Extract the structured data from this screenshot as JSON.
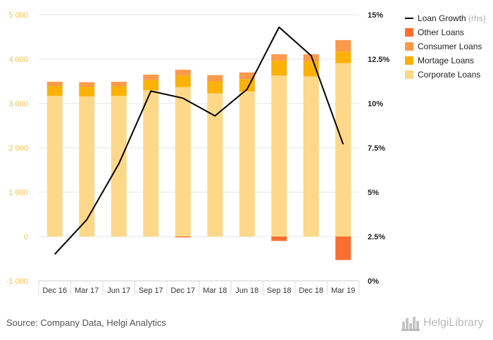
{
  "chart_data": {
    "type": "bar",
    "stacked": true,
    "categories": [
      "Dec 16",
      "Mar 17",
      "Jun 17",
      "Sep 17",
      "Dec 17",
      "Mar 18",
      "Jun 18",
      "Sep 18",
      "Dec 18",
      "Mar 19"
    ],
    "series": [
      {
        "name": "Corporate Loans",
        "color": "#fdd888",
        "values": [
          3170,
          3160,
          3170,
          3300,
          3370,
          3230,
          3270,
          3630,
          3610,
          3910
        ]
      },
      {
        "name": "Mortage Loans",
        "color": "#fbb106",
        "values": [
          220,
          220,
          220,
          230,
          260,
          270,
          280,
          340,
          340,
          260
        ]
      },
      {
        "name": "Consumer Loans",
        "color": "#fb9a4a",
        "values": [
          100,
          100,
          100,
          120,
          130,
          140,
          150,
          140,
          160,
          260
        ]
      },
      {
        "name": "Other Loans",
        "color": "#fb6d2e",
        "values": [
          0,
          0,
          0,
          0,
          -20,
          0,
          0,
          -100,
          0,
          -530
        ]
      }
    ],
    "line": {
      "name": "Loan Growth",
      "axis_note": "(rhs)",
      "color": "#000000",
      "values": [
        1.5,
        3.45,
        6.6,
        10.7,
        10.3,
        9.3,
        10.8,
        14.3,
        12.7,
        7.7
      ]
    },
    "y_left": {
      "min": -1000,
      "max": 5000,
      "ticks": [
        "-1 000",
        "0",
        "1 000",
        "2 000",
        "3 000",
        "4 000",
        "5 000"
      ]
    },
    "y_right": {
      "min": 0,
      "max": 15,
      "ticks": [
        "0%",
        "2.5%",
        "5%",
        "7.5%",
        "10%",
        "12.5%",
        "15%"
      ]
    },
    "legend_position": "top-right",
    "grid": true,
    "xlabel": "",
    "ylabel": ""
  },
  "footer": {
    "source": "Source: Company Data, Helgi Analytics",
    "brand": "HelgiLibrary"
  },
  "colors": {
    "axis_left_label": "#f0c14b",
    "axis_right_label": "#222222",
    "grid": "#e6e6e6"
  },
  "icons": {
    "brand_icon": "city-skyline-icon"
  }
}
